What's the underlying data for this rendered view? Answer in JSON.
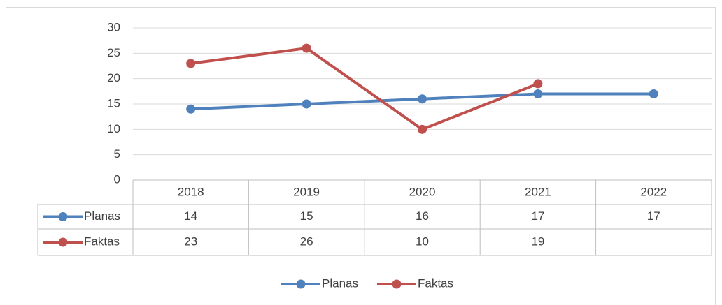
{
  "chart_data": {
    "type": "line",
    "categories": [
      "2018",
      "2019",
      "2020",
      "2021",
      "2022"
    ],
    "series": [
      {
        "name": "Planas",
        "color": "#4f81bd",
        "values": [
          14,
          15,
          16,
          17,
          17
        ]
      },
      {
        "name": "Faktas",
        "color": "#c0504d",
        "values": [
          23,
          26,
          10,
          19,
          null
        ]
      }
    ],
    "ylim": [
      0,
      30
    ],
    "yticks": [
      0,
      5,
      10,
      15,
      20,
      25,
      30
    ],
    "grid": true,
    "legend": "bottom"
  }
}
